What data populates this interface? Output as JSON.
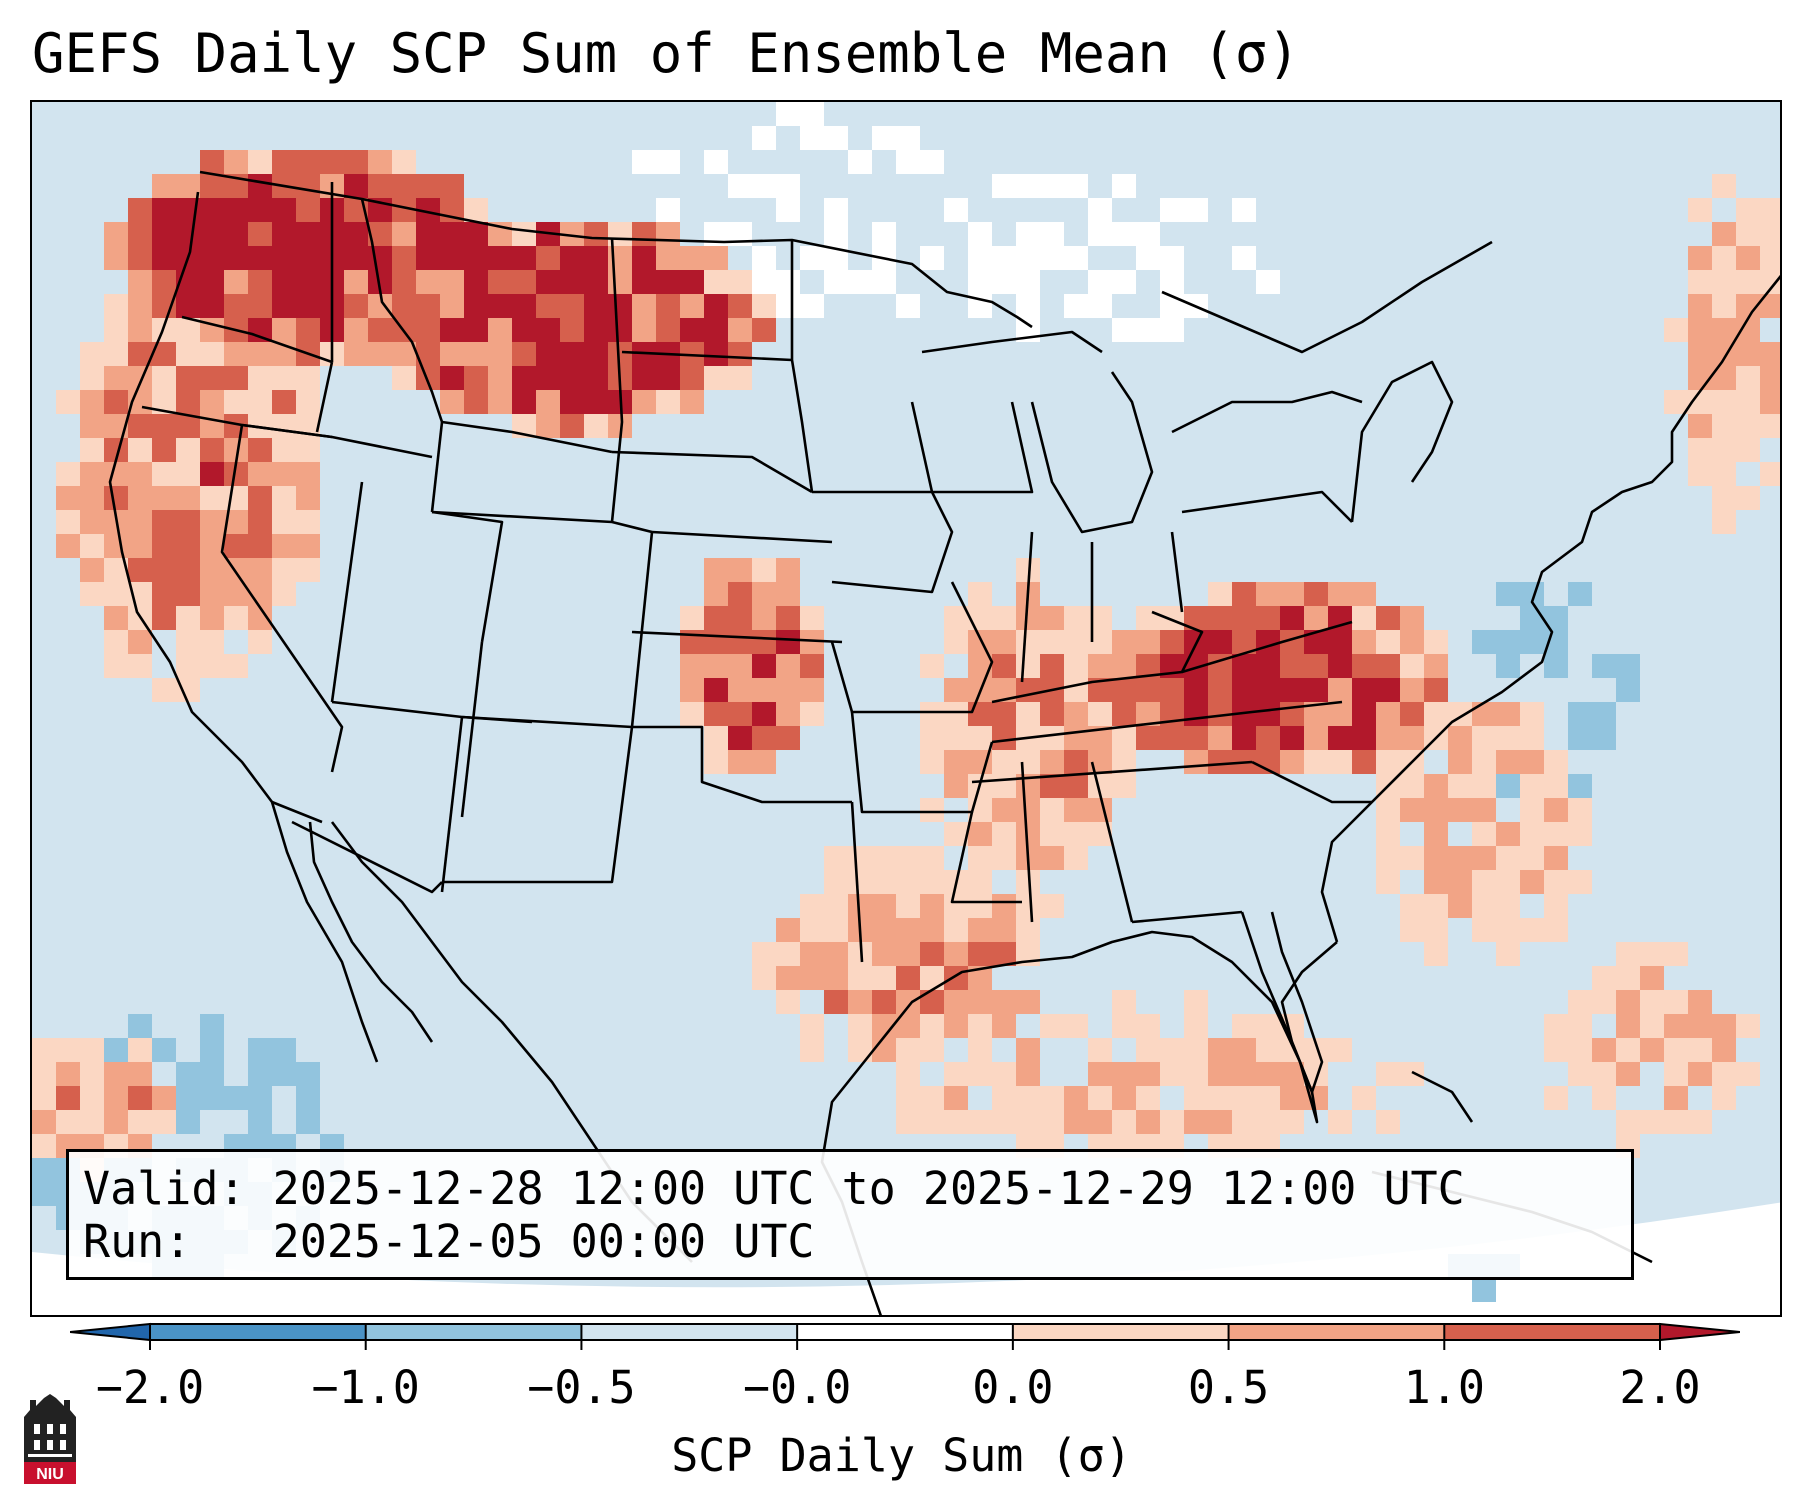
{
  "title": "GEFS Daily SCP Sum of Ensemble Mean (σ)",
  "info": {
    "valid_label": "Valid:",
    "valid_value": "2025-12-28 12:00 UTC to 2025-12-29 12:00 UTC",
    "run_label": "Run:",
    "run_value": "2025-12-05 00:00 UTC"
  },
  "colorbar": {
    "label": "SCP Daily Sum (σ)",
    "ticks": [
      "−2.0",
      "−1.0",
      "−0.5",
      "−0.0",
      "0.0",
      "0.5",
      "1.0",
      "2.0"
    ],
    "bins": [
      {
        "range": "−2.0 to −1.0",
        "color": "#4a93c6"
      },
      {
        "range": "−1.0 to −0.5",
        "color": "#92c4de"
      },
      {
        "range": "−0.5 to −0.0",
        "color": "#d2e4ef"
      },
      {
        "range": "−0.0 to 0.0",
        "color": "#ffffff"
      },
      {
        "range": "0.0 to 0.5",
        "color": "#fbd7c3"
      },
      {
        "range": "0.5 to 1.0",
        "color": "#f2a486"
      },
      {
        "range": "1.0 to 2.0",
        "color": "#d6604d"
      }
    ],
    "extend_low_color": "#2166ac",
    "extend_high_color": "#b2182b"
  },
  "map": {
    "projection": "Lambert Conformal (CONUS)",
    "features": [
      "state-borders",
      "country-borders",
      "coastlines",
      "great-lakes"
    ]
  },
  "logo": {
    "text": "NIU",
    "icon": "university-building-icon",
    "color": "#c8102e"
  }
}
